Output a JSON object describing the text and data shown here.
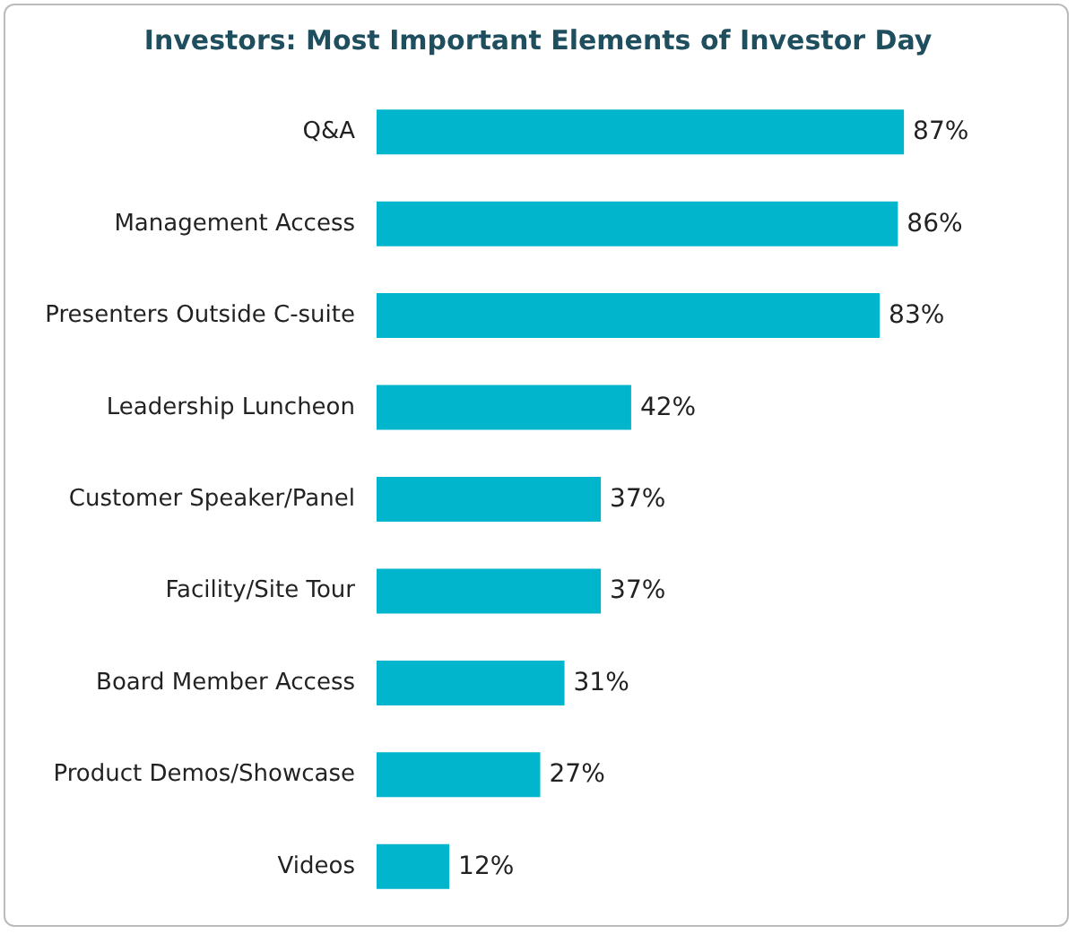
{
  "chart_data": {
    "type": "bar",
    "orientation": "horizontal",
    "title": "Investors: Most Important Elements of Investor Day",
    "categories": [
      "Q&A",
      "Management Access",
      "Presenters Outside C-suite",
      "Leadership Luncheon",
      "Customer Speaker/Panel",
      "Facility/Site Tour",
      "Board Member Access",
      "Product Demos/Showcase",
      "Videos"
    ],
    "values": [
      87,
      86,
      83,
      42,
      37,
      37,
      31,
      27,
      12
    ],
    "value_labels": [
      "87%",
      "86%",
      "83%",
      "42%",
      "37%",
      "37%",
      "31%",
      "27%",
      "12%"
    ],
    "color": "#00b5cc"
  }
}
